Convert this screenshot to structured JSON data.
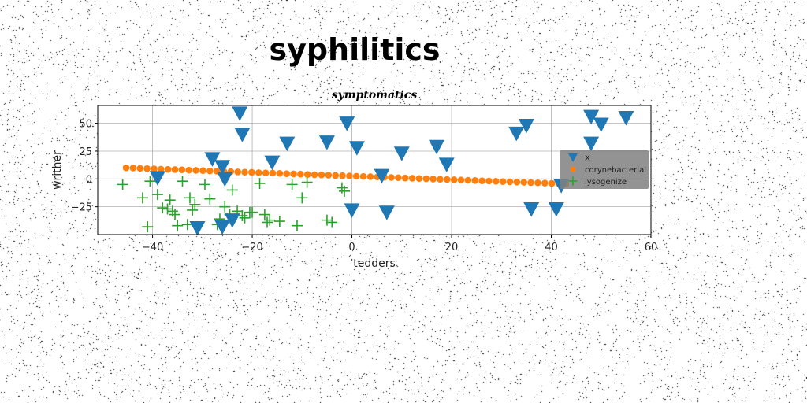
{
  "chart_data": {
    "type": "scatter",
    "suptitle": "syphilitics",
    "title": "symptomatics",
    "xlabel": "tedders",
    "ylabel": "writher",
    "xlim": [
      -51,
      60
    ],
    "ylim": [
      -50,
      66
    ],
    "xticks": [
      -40,
      -20,
      0,
      20,
      40,
      60
    ],
    "yticks": [
      -25,
      0,
      25,
      50
    ],
    "grid": true,
    "legend_position": "right",
    "series": [
      {
        "name": "X",
        "marker": "triangle-down",
        "color": "#1f77b4",
        "points": [
          [
            -39,
            1
          ],
          [
            -31,
            -44
          ],
          [
            -28,
            18
          ],
          [
            -26,
            11
          ],
          [
            -25.5,
            0
          ],
          [
            -24,
            -37
          ],
          [
            -22.5,
            59
          ],
          [
            -22,
            40
          ],
          [
            -16,
            15
          ],
          [
            -13,
            32
          ],
          [
            -26,
            -43
          ],
          [
            -5,
            33
          ],
          [
            -1,
            50
          ],
          [
            0,
            -28
          ],
          [
            1,
            28
          ],
          [
            6,
            3
          ],
          [
            7,
            -30
          ],
          [
            10,
            23
          ],
          [
            17,
            29
          ],
          [
            19,
            13
          ],
          [
            33,
            41
          ],
          [
            35,
            48
          ],
          [
            36,
            -27
          ],
          [
            41,
            -27
          ],
          [
            42,
            -6
          ],
          [
            48,
            56
          ],
          [
            48,
            32
          ],
          [
            50,
            49
          ],
          [
            55,
            55
          ]
        ]
      },
      {
        "name": "corynebacterial",
        "marker": "circle",
        "color": "#ff7f0e",
        "points": [
          [
            -45.3,
            10
          ],
          [
            -43.9,
            9.8
          ],
          [
            -42.5,
            9.5
          ],
          [
            -41.1,
            9.3
          ],
          [
            -39.7,
            9.1
          ],
          [
            -38.3,
            8.8
          ],
          [
            -36.9,
            8.6
          ],
          [
            -35.5,
            8.4
          ],
          [
            -34.1,
            8.2
          ],
          [
            -32.7,
            7.9
          ],
          [
            -31.3,
            7.7
          ],
          [
            -29.9,
            7.5
          ],
          [
            -28.5,
            7.2
          ],
          [
            -27.1,
            7.0
          ],
          [
            -25.7,
            6.8
          ],
          [
            -24.3,
            6.6
          ],
          [
            -22.9,
            6.3
          ],
          [
            -21.5,
            6.1
          ],
          [
            -20.1,
            5.9
          ],
          [
            -18.7,
            5.6
          ],
          [
            -17.3,
            5.4
          ],
          [
            -15.9,
            5.2
          ],
          [
            -14.5,
            5.0
          ],
          [
            -13.1,
            4.7
          ],
          [
            -11.7,
            4.5
          ],
          [
            -10.3,
            4.3
          ],
          [
            -8.9,
            4.0
          ],
          [
            -7.5,
            3.8
          ],
          [
            -6.1,
            3.6
          ],
          [
            -4.7,
            3.4
          ],
          [
            -3.3,
            3.1
          ],
          [
            -1.9,
            2.9
          ],
          [
            -0.5,
            2.7
          ],
          [
            0.9,
            2.4
          ],
          [
            2.3,
            2.2
          ],
          [
            3.7,
            2.0
          ],
          [
            5.1,
            1.8
          ],
          [
            6.5,
            1.5
          ],
          [
            7.9,
            1.3
          ],
          [
            9.3,
            1.1
          ],
          [
            10.7,
            0.8
          ],
          [
            12.1,
            0.6
          ],
          [
            13.5,
            0.4
          ],
          [
            14.9,
            0.2
          ],
          [
            16.3,
            -0.1
          ],
          [
            17.7,
            -0.3
          ],
          [
            19.1,
            -0.5
          ],
          [
            20.5,
            -0.8
          ],
          [
            21.9,
            -1.0
          ],
          [
            23.3,
            -1.2
          ],
          [
            24.7,
            -1.4
          ],
          [
            26.1,
            -1.7
          ],
          [
            27.5,
            -1.9
          ],
          [
            28.9,
            -2.1
          ],
          [
            30.3,
            -2.4
          ],
          [
            31.7,
            -2.6
          ],
          [
            33.1,
            -2.8
          ],
          [
            34.5,
            -3.0
          ],
          [
            35.9,
            -3.3
          ],
          [
            37.3,
            -3.5
          ],
          [
            38.7,
            -3.7
          ],
          [
            40.1,
            -4.0
          ],
          [
            41.5,
            -4.2
          ],
          [
            42.9,
            -4.4
          ]
        ]
      },
      {
        "name": "lysogenize",
        "marker": "plus",
        "color": "#2ca02c",
        "points": [
          [
            -46,
            -5
          ],
          [
            -42,
            -17
          ],
          [
            -41,
            -43
          ],
          [
            -40.5,
            -2
          ],
          [
            -39,
            -14
          ],
          [
            -38,
            -26
          ],
          [
            -37,
            -27
          ],
          [
            -36.5,
            -19
          ],
          [
            -36,
            -29
          ],
          [
            -35.5,
            -32
          ],
          [
            -35,
            -42
          ],
          [
            -34,
            -2
          ],
          [
            -33,
            -41
          ],
          [
            -32.5,
            -17
          ],
          [
            -32,
            -28
          ],
          [
            -31.5,
            -23
          ],
          [
            -29.5,
            -5
          ],
          [
            -28.5,
            -18
          ],
          [
            -27,
            -41
          ],
          [
            -26.5,
            -36
          ],
          [
            -25.5,
            -25
          ],
          [
            -24.5,
            -32
          ],
          [
            -24,
            -10
          ],
          [
            -23,
            -29
          ],
          [
            -22,
            -33
          ],
          [
            -21.5,
            -35
          ],
          [
            -20.5,
            -30
          ],
          [
            -20,
            -30
          ],
          [
            -18.5,
            -4
          ],
          [
            -17.5,
            -32
          ],
          [
            -17,
            -39
          ],
          [
            -16.5,
            -37
          ],
          [
            -14.5,
            -38
          ],
          [
            -12,
            -5
          ],
          [
            -11,
            -42
          ],
          [
            -10,
            -17
          ],
          [
            -9,
            -3
          ],
          [
            -5,
            -37
          ],
          [
            -4,
            -39
          ],
          [
            -2,
            -8
          ],
          [
            -1.5,
            -11
          ]
        ]
      }
    ]
  }
}
